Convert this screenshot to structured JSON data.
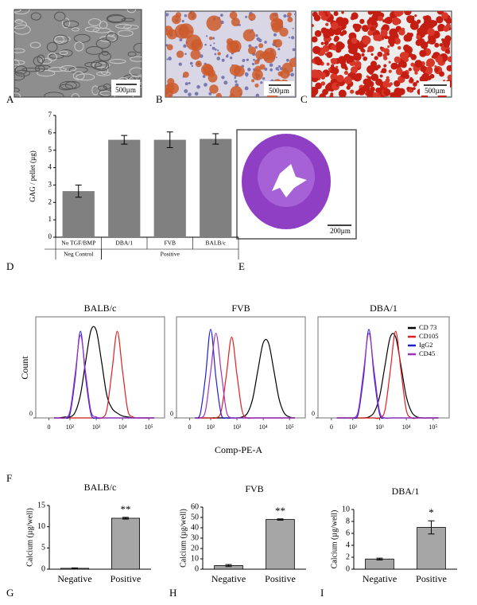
{
  "images": [
    {
      "panel": "A",
      "scale_bar": "500µm"
    },
    {
      "panel": "B",
      "scale_bar": "500µm"
    },
    {
      "panel": "C",
      "scale_bar": "500µm"
    },
    {
      "panel": "E",
      "scale_bar": "200µm"
    }
  ],
  "flow_panel": {
    "panel": "F",
    "ylabel": "Count",
    "xlabel": "Comp-PE-A"
  },
  "chart_data": [
    {
      "type": "bar",
      "panel": "D",
      "ylabel": "GAG / pellet  (µg)",
      "categories": [
        "No TGF/BMP",
        "DBA/1",
        "FVB",
        "BALB/c"
      ],
      "groups": [
        {
          "label": "Neg Control",
          "categories": [
            "No TGF/BMP"
          ]
        },
        {
          "label": "Positive",
          "categories": [
            "DBA/1",
            "FVB",
            "BALB/c"
          ]
        }
      ],
      "values": [
        2.65,
        5.6,
        5.6,
        5.65
      ],
      "errors": [
        0.35,
        0.25,
        0.45,
        0.3
      ],
      "color": "#808080",
      "ylim": [
        0,
        7
      ],
      "yticks": [
        0,
        1,
        2,
        3,
        4,
        5,
        6,
        7
      ]
    },
    {
      "type": "line",
      "title": "BALB/c",
      "x": [
        1.4,
        1.6,
        1.8,
        2.0,
        2.2,
        2.4,
        2.6,
        2.8,
        3.0,
        3.2,
        3.4,
        3.6,
        3.8,
        4.0,
        4.2,
        4.4,
        4.6,
        4.8,
        5.0,
        5.2
      ],
      "series": [
        {
          "color": "#000000",
          "values": [
            0,
            0,
            1,
            1,
            6,
            24,
            59,
            91,
            91,
            59,
            24,
            10,
            5,
            2,
            1,
            0,
            0,
            0,
            0,
            0
          ]
        },
        {
          "color": "#e02020",
          "values": [
            0,
            0,
            0,
            0,
            0,
            0,
            0,
            0,
            0,
            0,
            8,
            49,
            90,
            49,
            8,
            1,
            0,
            0,
            0,
            0
          ]
        },
        {
          "color": "#2020d0",
          "values": [
            0,
            0,
            0,
            4,
            41,
            90,
            41,
            4,
            0,
            0,
            0,
            0,
            0,
            0,
            0,
            0,
            0,
            0,
            0,
            0
          ]
        },
        {
          "color": "#a030c0",
          "values": [
            0,
            0,
            0,
            7,
            46,
            86,
            46,
            7,
            1,
            0,
            0,
            0,
            0,
            0,
            0,
            0,
            0,
            0,
            0,
            0
          ]
        }
      ],
      "xlim": [
        0.7,
        5.6
      ],
      "xticks": [
        {
          "value": 1.2,
          "label": "0"
        },
        {
          "value": 2,
          "label": "10²"
        },
        {
          "value": 3,
          "label": "10³"
        },
        {
          "value": 4,
          "label": "10⁴"
        },
        {
          "value": 5,
          "label": "10⁵"
        }
      ],
      "ylim": [
        0,
        105
      ],
      "yticks": [
        0
      ]
    },
    {
      "type": "line",
      "title": "FVB",
      "x": [
        1.4,
        1.6,
        1.8,
        2.0,
        2.2,
        2.4,
        2.6,
        2.8,
        3.0,
        3.2,
        3.4,
        3.6,
        3.8,
        4.0,
        4.2,
        4.4,
        4.6,
        4.8,
        5.0,
        5.2
      ],
      "series": [
        {
          "color": "#000000",
          "values": [
            0,
            0,
            0,
            0,
            0,
            0,
            0,
            0,
            0,
            1,
            5,
            20,
            50,
            78,
            78,
            50,
            20,
            5,
            1,
            0
          ]
        },
        {
          "color": "#e02020",
          "values": [
            0,
            0,
            0,
            0,
            0,
            7,
            45,
            84,
            45,
            7,
            0,
            0,
            0,
            0,
            0,
            0,
            0,
            0,
            0,
            0
          ]
        },
        {
          "color": "#2020d0",
          "values": [
            0,
            4,
            42,
            92,
            42,
            4,
            0,
            0,
            0,
            0,
            0,
            0,
            0,
            0,
            0,
            0,
            0,
            0,
            0,
            0
          ]
        },
        {
          "color": "#a030c0",
          "values": [
            0,
            0,
            7,
            48,
            88,
            48,
            7,
            0,
            0,
            0,
            0,
            0,
            0,
            0,
            0,
            0,
            0,
            0,
            0,
            0
          ]
        }
      ],
      "xlim": [
        0.7,
        5.6
      ],
      "xticks": [
        {
          "value": 1.2,
          "label": "0"
        },
        {
          "value": 2,
          "label": "10²"
        },
        {
          "value": 3,
          "label": "10³"
        },
        {
          "value": 4,
          "label": "10⁴"
        },
        {
          "value": 5,
          "label": "10⁵"
        }
      ],
      "ylim": [
        0,
        105
      ],
      "yticks": [
        0
      ]
    },
    {
      "type": "line",
      "title": "DBA/1",
      "legend": "upper right",
      "x": [
        1.4,
        1.6,
        1.8,
        2.0,
        2.2,
        2.4,
        2.6,
        2.8,
        3.0,
        3.2,
        3.4,
        3.6,
        3.8,
        4.0,
        4.2,
        4.4,
        4.6,
        4.8,
        5.0,
        5.2
      ],
      "series": [
        {
          "name": "CD 73",
          "color": "#000000",
          "values": [
            0,
            0,
            0,
            0,
            0,
            0,
            1,
            6,
            22,
            54,
            84,
            84,
            54,
            22,
            6,
            1,
            0,
            0,
            0,
            0
          ]
        },
        {
          "name": "CD105",
          "color": "#e02020",
          "values": [
            0,
            0,
            0,
            0,
            0,
            0,
            0,
            0,
            0,
            8,
            49,
            90,
            49,
            8,
            0,
            0,
            0,
            0,
            0,
            0
          ]
        },
        {
          "name": "IgG2",
          "color": "#2020d0",
          "values": [
            0,
            0,
            0,
            0,
            4,
            42,
            92,
            42,
            4,
            0,
            0,
            0,
            0,
            0,
            0,
            0,
            0,
            0,
            0,
            0
          ]
        },
        {
          "name": "CD45",
          "color": "#a030c0",
          "values": [
            0,
            0,
            0,
            0,
            7,
            48,
            88,
            48,
            7,
            0,
            0,
            0,
            0,
            0,
            0,
            0,
            0,
            0,
            0,
            0
          ]
        }
      ],
      "xlim": [
        0.7,
        5.6
      ],
      "xticks": [
        {
          "value": 1.2,
          "label": "0"
        },
        {
          "value": 2,
          "label": "10²"
        },
        {
          "value": 3,
          "label": "10³"
        },
        {
          "value": 4,
          "label": "10⁴"
        },
        {
          "value": 5,
          "label": "10⁵"
        }
      ],
      "ylim": [
        0,
        105
      ],
      "yticks": [
        0
      ]
    },
    {
      "type": "bar",
      "panel": "G",
      "title": "BALB/c",
      "ylabel": "Calcium (µg/well)",
      "categories": [
        "Negative",
        "Positive"
      ],
      "values": [
        0.2,
        12
      ],
      "errors": [
        0.1,
        0.2
      ],
      "annotation": "**",
      "color": "#a6a6a6",
      "ylim": [
        0,
        15
      ],
      "yticks": [
        0,
        5,
        10,
        15
      ]
    },
    {
      "type": "bar",
      "panel": "H",
      "title": "FVB",
      "ylabel": "Calcium (µg/well)",
      "categories": [
        "Negative",
        "Positive"
      ],
      "values": [
        3.5,
        48
      ],
      "errors": [
        1,
        0.6
      ],
      "annotation": "**",
      "color": "#a6a6a6",
      "ylim": [
        0,
        60
      ],
      "yticks": [
        0,
        10,
        20,
        30,
        40,
        50,
        60
      ]
    },
    {
      "type": "bar",
      "panel": "I",
      "title": "DBA/1",
      "ylabel": "Calcium (µg/well)",
      "categories": [
        "Negative",
        "Positive"
      ],
      "values": [
        1.7,
        7
      ],
      "errors": [
        0.15,
        1.1
      ],
      "annotation": "*",
      "color": "#a6a6a6",
      "ylim": [
        0,
        10
      ],
      "yticks": [
        0,
        2,
        4,
        6,
        8,
        10
      ]
    }
  ]
}
